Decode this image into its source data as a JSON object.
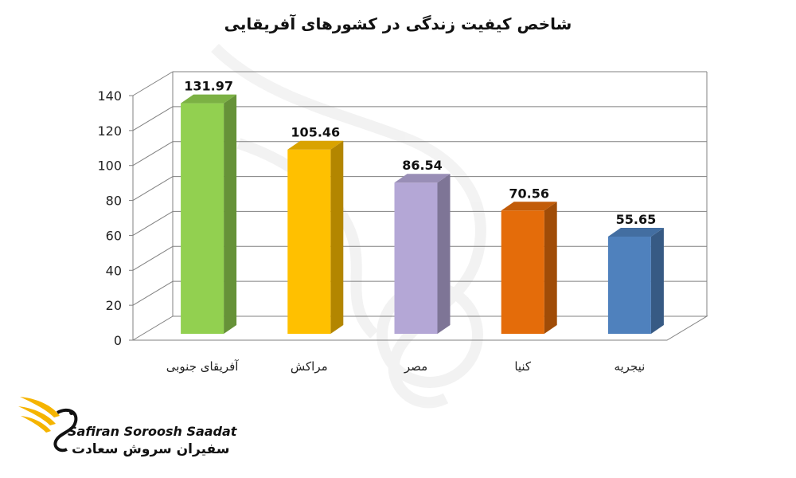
{
  "chart_data": {
    "type": "bar",
    "title": "شاخص کیفیت زندگی در کشورهای آفریقایی",
    "categories": [
      "آفریقای جنوبی",
      "مراکش",
      "مصر",
      "کنیا",
      "نیجریه"
    ],
    "values": [
      131.97,
      105.46,
      86.54,
      70.56,
      55.65
    ],
    "data_labels": [
      "131.97",
      "105.46",
      "86.54",
      "70.56",
      "55.65"
    ],
    "ylim": [
      0,
      140
    ],
    "yticks": [
      0,
      20,
      40,
      60,
      80,
      100,
      120,
      140
    ],
    "grid": true,
    "legend": "none",
    "colors": [
      "#92d050",
      "#ffc000",
      "#b4a7d6",
      "#e46c0a",
      "#4f81bd"
    ]
  },
  "logo": {
    "name_en": "Safiran Soroosh Saadat",
    "name_fa": "سفیران سروش سعادت",
    "accent_color": "#f5b400"
  }
}
